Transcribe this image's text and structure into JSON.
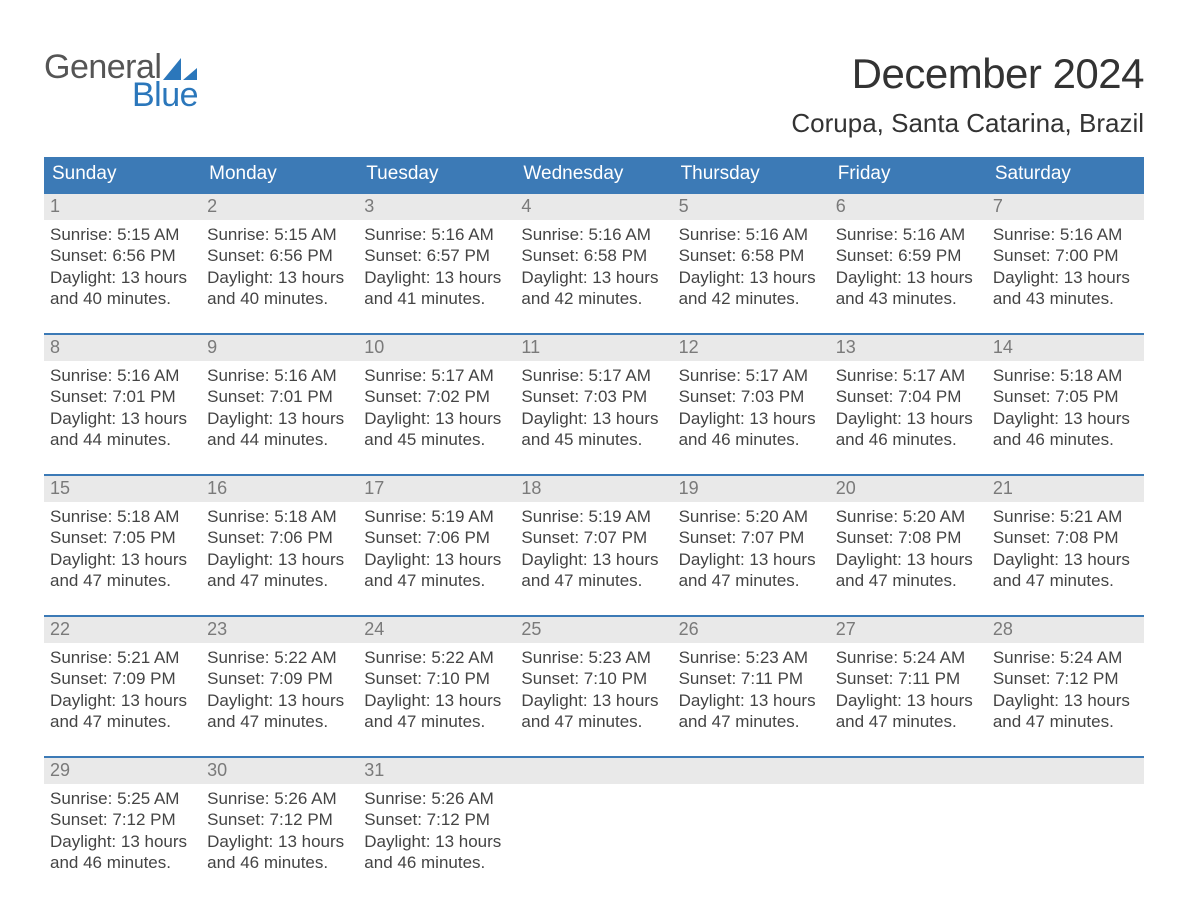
{
  "logo": {
    "word1": "General",
    "word2": "Blue",
    "sail_color": "#2b77bb",
    "text_color_top": "#555555"
  },
  "title": "December 2024",
  "location": "Corupa, Santa Catarina, Brazil",
  "colors": {
    "header_bg": "#3c7ab6",
    "header_text": "#ffffff",
    "daynum_bg": "#e9e9e9",
    "daynum_text": "#7a7a7a",
    "body_text": "#444444",
    "rule": "#3c7ab6",
    "page_bg": "#ffffff"
  },
  "typography": {
    "title_fontsize": 42,
    "location_fontsize": 26,
    "weekday_fontsize": 19,
    "daynum_fontsize": 18,
    "cell_fontsize": 17,
    "logo_fontsize": 34
  },
  "weekdays": [
    "Sunday",
    "Monday",
    "Tuesday",
    "Wednesday",
    "Thursday",
    "Friday",
    "Saturday"
  ],
  "weeks": [
    [
      {
        "n": "1",
        "lines": [
          "Sunrise: 5:15 AM",
          "Sunset: 6:56 PM",
          "Daylight: 13 hours",
          "and 40 minutes."
        ]
      },
      {
        "n": "2",
        "lines": [
          "Sunrise: 5:15 AM",
          "Sunset: 6:56 PM",
          "Daylight: 13 hours",
          "and 40 minutes."
        ]
      },
      {
        "n": "3",
        "lines": [
          "Sunrise: 5:16 AM",
          "Sunset: 6:57 PM",
          "Daylight: 13 hours",
          "and 41 minutes."
        ]
      },
      {
        "n": "4",
        "lines": [
          "Sunrise: 5:16 AM",
          "Sunset: 6:58 PM",
          "Daylight: 13 hours",
          "and 42 minutes."
        ]
      },
      {
        "n": "5",
        "lines": [
          "Sunrise: 5:16 AM",
          "Sunset: 6:58 PM",
          "Daylight: 13 hours",
          "and 42 minutes."
        ]
      },
      {
        "n": "6",
        "lines": [
          "Sunrise: 5:16 AM",
          "Sunset: 6:59 PM",
          "Daylight: 13 hours",
          "and 43 minutes."
        ]
      },
      {
        "n": "7",
        "lines": [
          "Sunrise: 5:16 AM",
          "Sunset: 7:00 PM",
          "Daylight: 13 hours",
          "and 43 minutes."
        ]
      }
    ],
    [
      {
        "n": "8",
        "lines": [
          "Sunrise: 5:16 AM",
          "Sunset: 7:01 PM",
          "Daylight: 13 hours",
          "and 44 minutes."
        ]
      },
      {
        "n": "9",
        "lines": [
          "Sunrise: 5:16 AM",
          "Sunset: 7:01 PM",
          "Daylight: 13 hours",
          "and 44 minutes."
        ]
      },
      {
        "n": "10",
        "lines": [
          "Sunrise: 5:17 AM",
          "Sunset: 7:02 PM",
          "Daylight: 13 hours",
          "and 45 minutes."
        ]
      },
      {
        "n": "11",
        "lines": [
          "Sunrise: 5:17 AM",
          "Sunset: 7:03 PM",
          "Daylight: 13 hours",
          "and 45 minutes."
        ]
      },
      {
        "n": "12",
        "lines": [
          "Sunrise: 5:17 AM",
          "Sunset: 7:03 PM",
          "Daylight: 13 hours",
          "and 46 minutes."
        ]
      },
      {
        "n": "13",
        "lines": [
          "Sunrise: 5:17 AM",
          "Sunset: 7:04 PM",
          "Daylight: 13 hours",
          "and 46 minutes."
        ]
      },
      {
        "n": "14",
        "lines": [
          "Sunrise: 5:18 AM",
          "Sunset: 7:05 PM",
          "Daylight: 13 hours",
          "and 46 minutes."
        ]
      }
    ],
    [
      {
        "n": "15",
        "lines": [
          "Sunrise: 5:18 AM",
          "Sunset: 7:05 PM",
          "Daylight: 13 hours",
          "and 47 minutes."
        ]
      },
      {
        "n": "16",
        "lines": [
          "Sunrise: 5:18 AM",
          "Sunset: 7:06 PM",
          "Daylight: 13 hours",
          "and 47 minutes."
        ]
      },
      {
        "n": "17",
        "lines": [
          "Sunrise: 5:19 AM",
          "Sunset: 7:06 PM",
          "Daylight: 13 hours",
          "and 47 minutes."
        ]
      },
      {
        "n": "18",
        "lines": [
          "Sunrise: 5:19 AM",
          "Sunset: 7:07 PM",
          "Daylight: 13 hours",
          "and 47 minutes."
        ]
      },
      {
        "n": "19",
        "lines": [
          "Sunrise: 5:20 AM",
          "Sunset: 7:07 PM",
          "Daylight: 13 hours",
          "and 47 minutes."
        ]
      },
      {
        "n": "20",
        "lines": [
          "Sunrise: 5:20 AM",
          "Sunset: 7:08 PM",
          "Daylight: 13 hours",
          "and 47 minutes."
        ]
      },
      {
        "n": "21",
        "lines": [
          "Sunrise: 5:21 AM",
          "Sunset: 7:08 PM",
          "Daylight: 13 hours",
          "and 47 minutes."
        ]
      }
    ],
    [
      {
        "n": "22",
        "lines": [
          "Sunrise: 5:21 AM",
          "Sunset: 7:09 PM",
          "Daylight: 13 hours",
          "and 47 minutes."
        ]
      },
      {
        "n": "23",
        "lines": [
          "Sunrise: 5:22 AM",
          "Sunset: 7:09 PM",
          "Daylight: 13 hours",
          "and 47 minutes."
        ]
      },
      {
        "n": "24",
        "lines": [
          "Sunrise: 5:22 AM",
          "Sunset: 7:10 PM",
          "Daylight: 13 hours",
          "and 47 minutes."
        ]
      },
      {
        "n": "25",
        "lines": [
          "Sunrise: 5:23 AM",
          "Sunset: 7:10 PM",
          "Daylight: 13 hours",
          "and 47 minutes."
        ]
      },
      {
        "n": "26",
        "lines": [
          "Sunrise: 5:23 AM",
          "Sunset: 7:11 PM",
          "Daylight: 13 hours",
          "and 47 minutes."
        ]
      },
      {
        "n": "27",
        "lines": [
          "Sunrise: 5:24 AM",
          "Sunset: 7:11 PM",
          "Daylight: 13 hours",
          "and 47 minutes."
        ]
      },
      {
        "n": "28",
        "lines": [
          "Sunrise: 5:24 AM",
          "Sunset: 7:12 PM",
          "Daylight: 13 hours",
          "and 47 minutes."
        ]
      }
    ],
    [
      {
        "n": "29",
        "lines": [
          "Sunrise: 5:25 AM",
          "Sunset: 7:12 PM",
          "Daylight: 13 hours",
          "and 46 minutes."
        ]
      },
      {
        "n": "30",
        "lines": [
          "Sunrise: 5:26 AM",
          "Sunset: 7:12 PM",
          "Daylight: 13 hours",
          "and 46 minutes."
        ]
      },
      {
        "n": "31",
        "lines": [
          "Sunrise: 5:26 AM",
          "Sunset: 7:12 PM",
          "Daylight: 13 hours",
          "and 46 minutes."
        ]
      },
      null,
      null,
      null,
      null
    ]
  ]
}
